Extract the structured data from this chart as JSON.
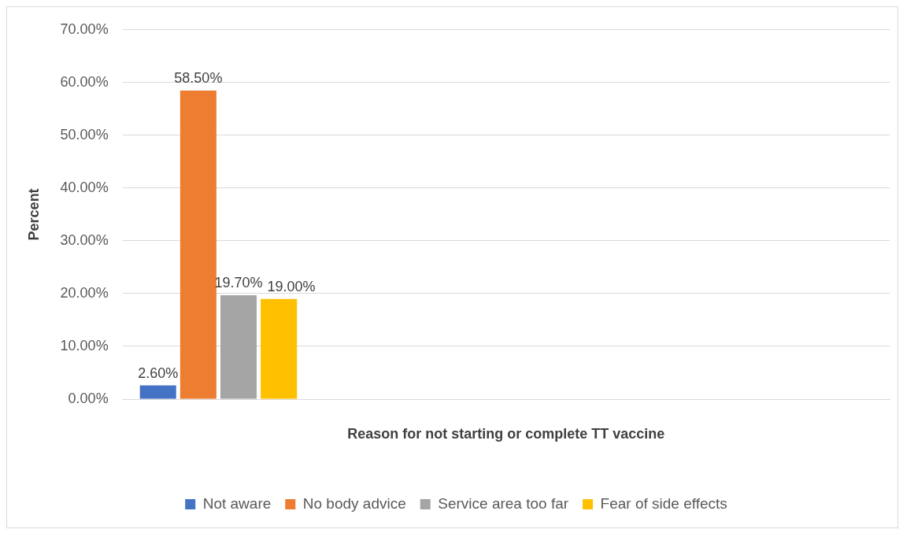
{
  "chart_data": {
    "type": "bar",
    "xlabel": "Reason for not starting or complete TT vaccine",
    "ylabel": "Percent",
    "categories": [
      null,
      null,
      null,
      null
    ],
    "series": [
      {
        "name": "Not aware",
        "color": "#4472c4",
        "values": [
          2.6,
          null,
          null,
          null
        ],
        "value_labels": [
          "2.60%",
          null,
          null,
          null
        ]
      },
      {
        "name": "No body advice",
        "color": "#ed7d31",
        "values": [
          58.5,
          null,
          null,
          null
        ],
        "value_labels": [
          "58.50%",
          null,
          null,
          null
        ]
      },
      {
        "name": "Service area too far",
        "color": "#a5a5a5",
        "values": [
          19.7,
          null,
          null,
          null
        ],
        "value_labels": [
          "19.70%",
          null,
          null,
          null
        ]
      },
      {
        "name": "Fear of side effects",
        "color": "#ffc000",
        "values": [
          19.0,
          null,
          null,
          null
        ],
        "value_labels": [
          "19.00%",
          null,
          null,
          null
        ]
      }
    ],
    "ylim": [
      0,
      70
    ],
    "yticks": [
      {
        "value": 0,
        "label": "0.00%"
      },
      {
        "value": 10,
        "label": "10.00%"
      },
      {
        "value": 20,
        "label": "20.00%"
      },
      {
        "value": 30,
        "label": "30.00%"
      },
      {
        "value": 40,
        "label": "40.00%"
      },
      {
        "value": 50,
        "label": "50.00%"
      },
      {
        "value": 60,
        "label": "60.00%"
      },
      {
        "value": 70,
        "label": "70.00%"
      }
    ],
    "grid": "y",
    "legend": "bottom"
  }
}
